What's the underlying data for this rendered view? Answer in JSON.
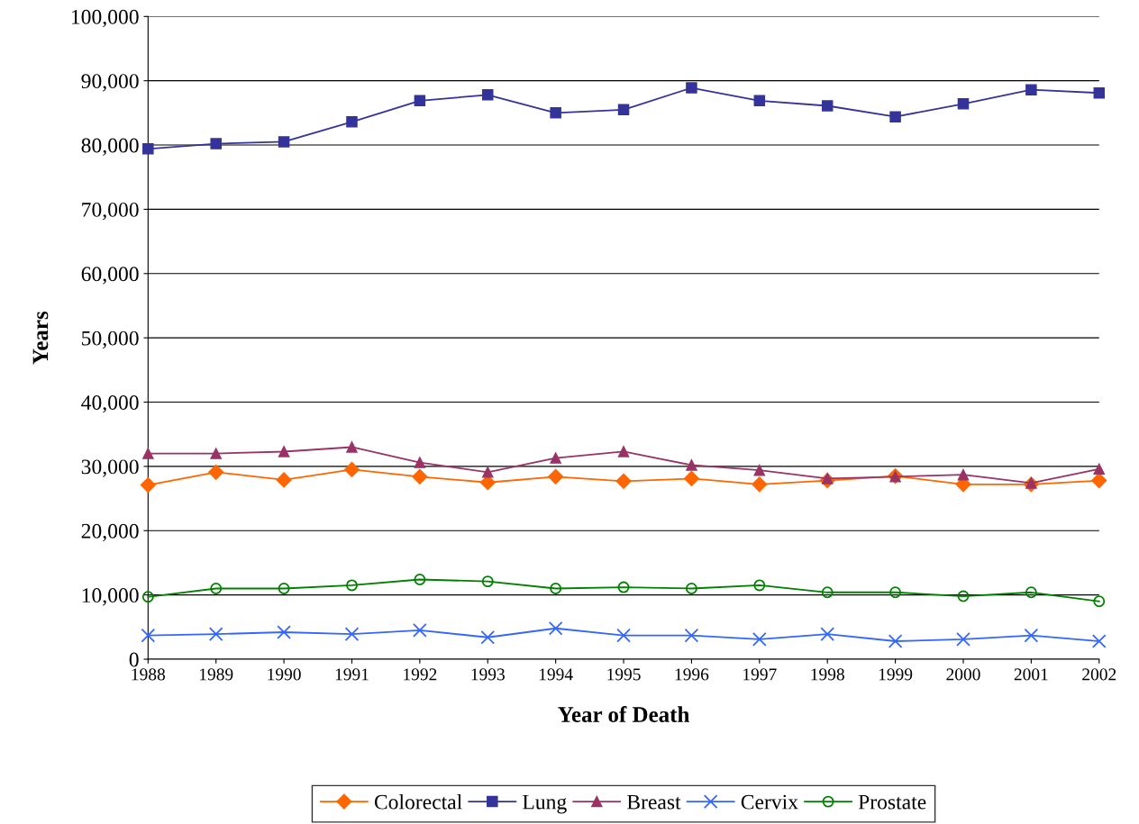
{
  "chart_data": {
    "type": "line",
    "xlabel": "Year of Death",
    "ylabel": "Years",
    "x": [
      1988,
      1989,
      1990,
      1991,
      1992,
      1993,
      1994,
      1995,
      1996,
      1997,
      1998,
      1999,
      2000,
      2001,
      2002
    ],
    "xlim": [
      1988,
      2002
    ],
    "xticks": [
      1988,
      1989,
      1990,
      1991,
      1992,
      1993,
      1994,
      1995,
      1996,
      1997,
      1998,
      1999,
      2000,
      2001,
      2002
    ],
    "ylim": [
      0,
      100000
    ],
    "yticks": [
      {
        "value": 0,
        "label": "0"
      },
      {
        "value": 10000,
        "label": "10,000"
      },
      {
        "value": 20000,
        "label": "20,000"
      },
      {
        "value": 30000,
        "label": "30,000"
      },
      {
        "value": 40000,
        "label": "40,000"
      },
      {
        "value": 50000,
        "label": "50,000"
      },
      {
        "value": 60000,
        "label": "60,000"
      },
      {
        "value": 70000,
        "label": "70,000"
      },
      {
        "value": 80000,
        "label": "80,000"
      },
      {
        "value": 90000,
        "label": "90,000"
      },
      {
        "value": 100000,
        "label": "100,000"
      }
    ],
    "grid": "y",
    "legend": "bottom",
    "line_style": "solid",
    "series": [
      {
        "name": "Colorectal",
        "color": "#ff6600",
        "marker": "diamond",
        "values": [
          27100,
          29100,
          27900,
          29500,
          28400,
          27500,
          28400,
          27700,
          28100,
          27200,
          27800,
          28500,
          27200,
          27200,
          27800
        ]
      },
      {
        "name": "Lung",
        "color": "#333399",
        "marker": "square",
        "values": [
          79400,
          80200,
          80500,
          83600,
          86900,
          87800,
          85000,
          85500,
          88900,
          86900,
          86100,
          84400,
          86400,
          88600,
          88100
        ]
      },
      {
        "name": "Breast",
        "color": "#993366",
        "marker": "triangle",
        "values": [
          32000,
          32000,
          32300,
          33000,
          30600,
          29100,
          31300,
          32300,
          30200,
          29400,
          28100,
          28400,
          28700,
          27400,
          29600
        ]
      },
      {
        "name": "Cervix",
        "color": "#3366ff",
        "marker": "cross",
        "values": [
          3700,
          3900,
          4200,
          3900,
          4500,
          3400,
          4800,
          3700,
          3700,
          3100,
          3900,
          2800,
          3100,
          3700,
          2800
        ]
      },
      {
        "name": "Prostate",
        "color": "#008000",
        "marker": "circle",
        "values": [
          9700,
          11000,
          11000,
          11500,
          12400,
          12100,
          11000,
          11200,
          11000,
          11500,
          10400,
          10400,
          9800,
          10400,
          9000
        ]
      }
    ]
  }
}
